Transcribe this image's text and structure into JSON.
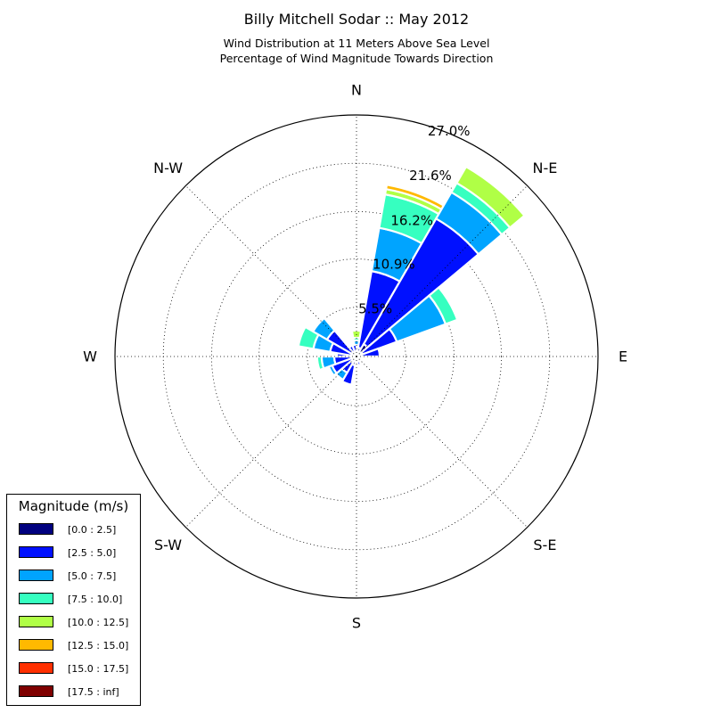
{
  "chart_data": {
    "type": "wind-rose",
    "title": "Billy Mitchell Sodar :: May 2012",
    "subtitle_lines": [
      "Wind Distribution at 11 Meters Above Sea Level",
      "Percentage of Wind Magnitude Towards Direction"
    ],
    "radial_ticks": [
      "5.5%",
      "10.9%",
      "16.2%",
      "21.6%",
      "27.0%"
    ],
    "radial_tick_values": [
      5.5,
      10.9,
      16.2,
      21.6,
      27.0
    ],
    "radial_max": 27.0,
    "directions": [
      "N",
      "N-E",
      "E",
      "S-E",
      "S",
      "S-W",
      "W",
      "N-W"
    ],
    "grid": true,
    "legend": {
      "title": "Magnitude (m/s)",
      "placement": "bottom-left",
      "bins": [
        {
          "label": "[0.0 : 2.5]",
          "color": "#00007f"
        },
        {
          "label": "[2.5 : 5.0]",
          "color": "#0010ff"
        },
        {
          "label": "[5.0 : 7.5]",
          "color": "#00a4ff"
        },
        {
          "label": "[7.5 : 10.0]",
          "color": "#36ffc0"
        },
        {
          "label": "[10.0 : 12.5]",
          "color": "#b0ff46"
        },
        {
          "label": "[12.5 : 15.0]",
          "color": "#ffb900"
        },
        {
          "label": "[15.0 : 17.5]",
          "color": "#ff3000"
        },
        {
          "label": "[17.5 : inf]",
          "color": "#7f0000"
        }
      ]
    },
    "sector_width_deg": 20,
    "sectors": [
      {
        "direction_deg": 0,
        "cumulative": [
          0.3,
          1.0,
          1.8,
          2.1,
          2.9
        ]
      },
      {
        "direction_deg": 20,
        "cumulative": [
          1.0,
          9.7,
          14.6,
          18.4,
          19.0,
          19.5
        ]
      },
      {
        "direction_deg": 40,
        "cumulative": [
          1.6,
          17.8,
          21.2,
          22.4,
          24.5
        ]
      },
      {
        "direction_deg": 60,
        "cumulative": [
          0.7,
          4.8,
          10.6,
          12.0
        ]
      },
      {
        "direction_deg": 80,
        "cumulative": [
          0.5,
          2.6
        ]
      },
      {
        "direction_deg": 100,
        "cumulative": [
          0.3
        ]
      },
      {
        "direction_deg": 120,
        "cumulative": [
          0.3
        ]
      },
      {
        "direction_deg": 140,
        "cumulative": [
          0.3
        ]
      },
      {
        "direction_deg": 160,
        "cumulative": [
          0.5,
          1.0
        ]
      },
      {
        "direction_deg": 180,
        "cumulative": [
          0.3
        ]
      },
      {
        "direction_deg": 200,
        "cumulative": [
          1.0,
          3.2
        ]
      },
      {
        "direction_deg": 220,
        "cumulative": [
          0.8,
          2.1,
          3.0
        ]
      },
      {
        "direction_deg": 240,
        "cumulative": [
          0.5,
          2.9,
          3.3
        ]
      },
      {
        "direction_deg": 260,
        "cumulative": [
          0.4,
          2.5,
          3.9,
          4.4
        ]
      },
      {
        "direction_deg": 280,
        "cumulative": [
          0.5,
          2.2
        ]
      },
      {
        "direction_deg": 290,
        "cumulative": [
          0.6,
          3.0,
          4.9,
          6.6
        ]
      },
      {
        "direction_deg": 310,
        "cumulative": [
          0.6,
          3.8,
          5.6
        ]
      },
      {
        "direction_deg": 330,
        "cumulative": [
          0.5,
          1.3
        ]
      },
      {
        "direction_deg": 350,
        "cumulative": [
          0.3,
          1.3
        ]
      }
    ]
  }
}
